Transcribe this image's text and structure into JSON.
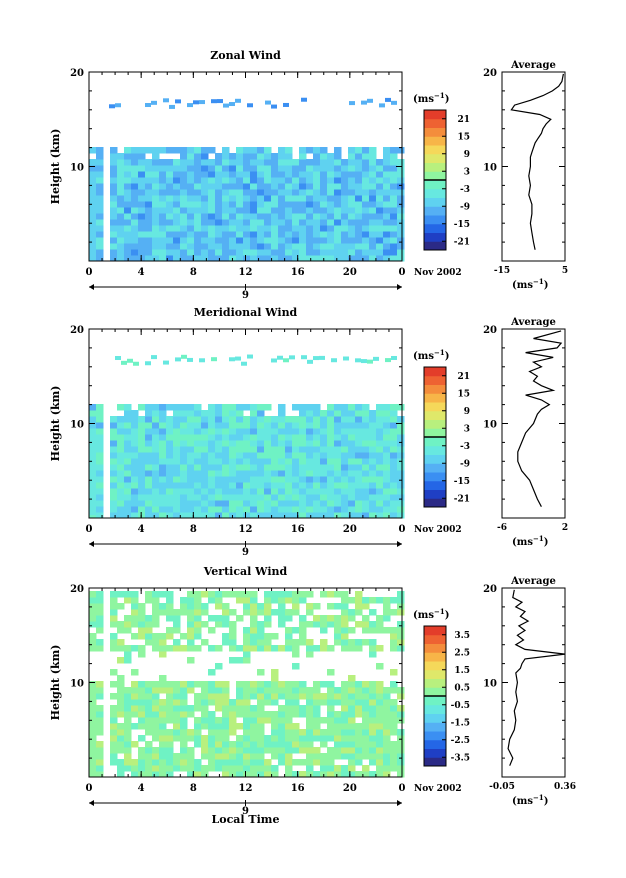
{
  "chart_data": [
    {
      "type": "heatmap",
      "title": "Zonal Wind",
      "ylabel": "Height (km)",
      "xlabel": "",
      "ylim": [
        0,
        20
      ],
      "xlim": [
        0,
        24
      ],
      "x_ticks": [
        "0",
        "4",
        "8",
        "12",
        "16",
        "20",
        "0"
      ],
      "y_ticks": [
        "10",
        "20"
      ],
      "date_label": "9",
      "month_label": "Nov 2002",
      "colorbar": {
        "unit": "(ms",
        "unit_exp": "−1",
        "unit_close": ")",
        "ticks": [
          "21",
          "15",
          "9",
          "3",
          "-3",
          "-9",
          "-15",
          "-21"
        ],
        "range": [
          -24,
          24
        ]
      },
      "dominant_value": -8,
      "profile": {
        "title": "Average",
        "xlim": [
          -15,
          5
        ],
        "x_ticks": [
          "-15",
          "5"
        ],
        "y_ticks": [
          "10",
          "20"
        ],
        "unit": "(ms",
        "unit_exp": "−1",
        "unit_close": ")",
        "x": [
          -4.5,
          -5.0,
          -5.5,
          -6.0,
          -5.5,
          -5.5,
          -6.5,
          -6.0,
          -6.5,
          -6.0,
          -6.0,
          -5.5,
          -5.0,
          -4.5,
          -3.5,
          -2.5,
          -2.0,
          -1.0,
          0.5,
          -3.0,
          -12.0,
          -11.0,
          -6.0,
          -2.0,
          1.0,
          3.0,
          4.0,
          4.5
        ],
        "y": [
          1.2,
          2.0,
          3.0,
          4.0,
          5.0,
          6.0,
          7.0,
          8.0,
          9.0,
          10.0,
          11.0,
          11.5,
          12.0,
          12.5,
          13.0,
          13.5,
          14.0,
          14.5,
          15.0,
          15.5,
          16.0,
          16.5,
          17.0,
          17.5,
          18.0,
          18.5,
          19.0,
          19.8
        ]
      }
    },
    {
      "type": "heatmap",
      "title": "Meridional Wind",
      "ylabel": "Height (km)",
      "xlabel": "",
      "ylim": [
        0,
        20
      ],
      "xlim": [
        0,
        24
      ],
      "x_ticks": [
        "0",
        "4",
        "8",
        "12",
        "16",
        "20",
        "0"
      ],
      "y_ticks": [
        "10",
        "20"
      ],
      "date_label": "9",
      "month_label": "Nov 2002",
      "colorbar": {
        "unit": "(ms",
        "unit_exp": "−1",
        "unit_close": ")",
        "ticks": [
          "21",
          "15",
          "9",
          "3",
          "-3",
          "-9",
          "-15",
          "-21"
        ],
        "range": [
          -24,
          24
        ]
      },
      "dominant_value": -5,
      "profile": {
        "title": "Average",
        "xlim": [
          -6,
          2
        ],
        "x_ticks": [
          "-6",
          "2"
        ],
        "y_ticks": [
          "10",
          "20"
        ],
        "unit": "(ms",
        "unit_exp": "−1",
        "unit_close": ")",
        "x": [
          -1.0,
          -1.5,
          -2.0,
          -2.5,
          -3.5,
          -4.0,
          -4.0,
          -3.5,
          -3.0,
          -2.0,
          -1.5,
          -1.0,
          0.0,
          -1.0,
          -3.0,
          0.5,
          -1.0,
          -2.0,
          -1.5,
          -2.5,
          -1.0,
          -2.0,
          0.5,
          -3.0,
          1.0,
          1.5,
          -2.0,
          1.5
        ],
        "y": [
          1.2,
          2.0,
          3.0,
          4.0,
          5.0,
          6.0,
          7.0,
          8.0,
          9.0,
          10.0,
          11.0,
          11.5,
          12.0,
          12.5,
          13.0,
          13.5,
          14.0,
          14.5,
          15.0,
          15.5,
          16.0,
          16.5,
          17.0,
          17.5,
          18.0,
          18.5,
          19.0,
          19.8
        ]
      }
    },
    {
      "type": "heatmap",
      "title": "Vertical Wind",
      "ylabel": "Height (km)",
      "xlabel": "Local Time",
      "ylim": [
        0,
        20
      ],
      "xlim": [
        0,
        24
      ],
      "x_ticks": [
        "0",
        "4",
        "8",
        "12",
        "16",
        "20",
        "0"
      ],
      "y_ticks": [
        "10",
        "20"
      ],
      "date_label": "9",
      "month_label": "Nov 2002",
      "colorbar": {
        "unit": "(ms",
        "unit_exp": "−1",
        "unit_close": ")",
        "ticks": [
          "3.5",
          "2.5",
          "1.5",
          "0.5",
          "-0.5",
          "-1.5",
          "-2.5",
          "-3.5"
        ],
        "range": [
          -4,
          4
        ]
      },
      "dominant_value": 0.2,
      "profile": {
        "title": "Average",
        "xlim": [
          -0.05,
          0.36
        ],
        "x_ticks": [
          "-0.05",
          "0.36"
        ],
        "y_ticks": [
          "10",
          "20"
        ],
        "unit": "(ms",
        "unit_exp": "−1",
        "unit_close": ")",
        "x": [
          0.0,
          0.02,
          -0.01,
          0.0,
          0.03,
          0.04,
          0.03,
          0.05,
          0.04,
          0.05,
          0.04,
          0.07,
          0.08,
          0.1,
          0.36,
          0.1,
          0.04,
          0.09,
          0.05,
          0.1,
          0.06,
          0.12,
          0.07,
          0.1,
          0.04,
          0.08,
          0.02,
          0.03
        ],
        "y": [
          1.2,
          2.0,
          3.0,
          4.0,
          5.0,
          6.0,
          7.0,
          8.0,
          9.0,
          10.0,
          11.0,
          11.5,
          12.0,
          12.5,
          13.0,
          13.5,
          14.0,
          14.5,
          15.0,
          15.5,
          16.0,
          16.5,
          17.0,
          17.5,
          18.0,
          18.5,
          19.0,
          19.8
        ]
      }
    }
  ]
}
